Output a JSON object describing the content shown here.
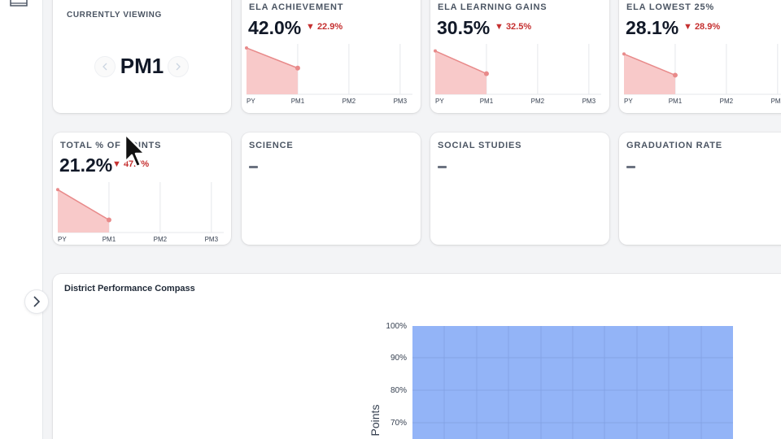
{
  "sidebar": {
    "expand_icon": "chevron-right-icon",
    "top_icon": "book-icon"
  },
  "current": {
    "label": "CURRENTLY VIEWING",
    "period": "PM1"
  },
  "metrics": [
    {
      "label": "ELA ACHIEVEMENT",
      "value": "42.0%",
      "delta": "▼ 22.9%",
      "points": [
        0.92,
        0.52
      ]
    },
    {
      "label": "ELA LEARNING GAINS",
      "value": "30.5%",
      "delta": "▼ 32.5%",
      "points": [
        0.86,
        0.41
      ]
    },
    {
      "label": "ELA LOWEST 25%",
      "value": "28.1%",
      "delta": "▼ 28.9%",
      "points": [
        0.8,
        0.38
      ]
    },
    {
      "label": "TOTAL % OF POINTS",
      "value": "21.2%",
      "delta": "▼ 47.7%",
      "points": [
        0.85,
        0.25
      ]
    }
  ],
  "empty_metrics": [
    {
      "label": "SCIENCE",
      "value": "—"
    },
    {
      "label": "SOCIAL STUDIES",
      "value": "—"
    },
    {
      "label": "GRADUATION RATE",
      "value": "—"
    }
  ],
  "periods": [
    "PY",
    "PM1",
    "PM2",
    "PM3"
  ],
  "compass": {
    "title": "District Performance Compass",
    "chart_data": {
      "type": "area",
      "ylabel": "Points",
      "yticks": [
        "100%",
        "90%",
        "80%",
        "70%"
      ],
      "ylim_visible": [
        70,
        100
      ],
      "fill_color": "#93b4f7"
    }
  }
}
